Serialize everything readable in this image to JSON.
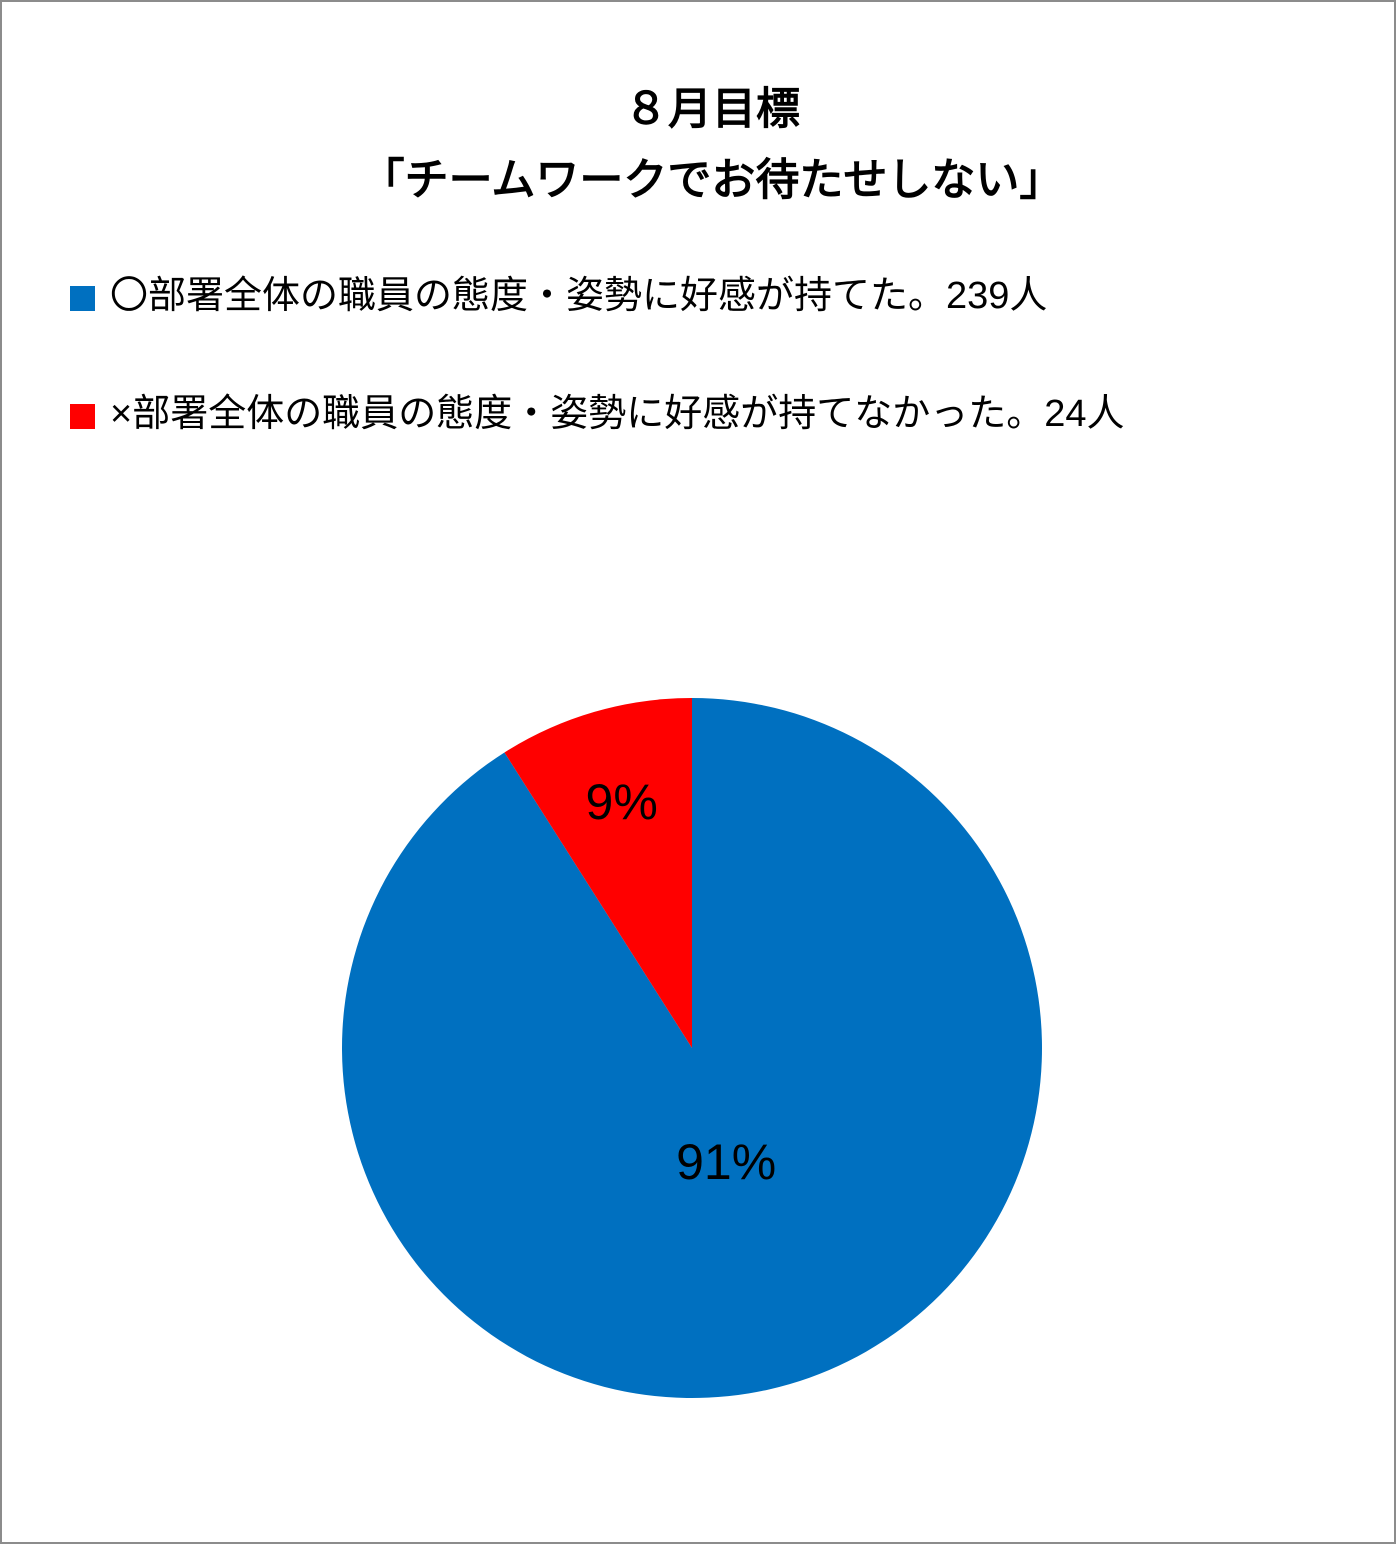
{
  "chart_data": {
    "type": "pie",
    "title": "８月目標",
    "subtitle": "「チームワークでお待たせしない」",
    "series": [
      {
        "name": "〇部署全体の職員の態度・姿勢に好感が持てた。239人",
        "color": "#0070c0",
        "values": [
          91
        ],
        "value_labels": [
          "91%"
        ]
      },
      {
        "name": "×部署全体の職員の態度・姿勢に好感が持てなかった。24人",
        "color": "#ff0000",
        "values": [
          9
        ],
        "value_labels": [
          "9%"
        ]
      }
    ],
    "legend": "top-left"
  }
}
